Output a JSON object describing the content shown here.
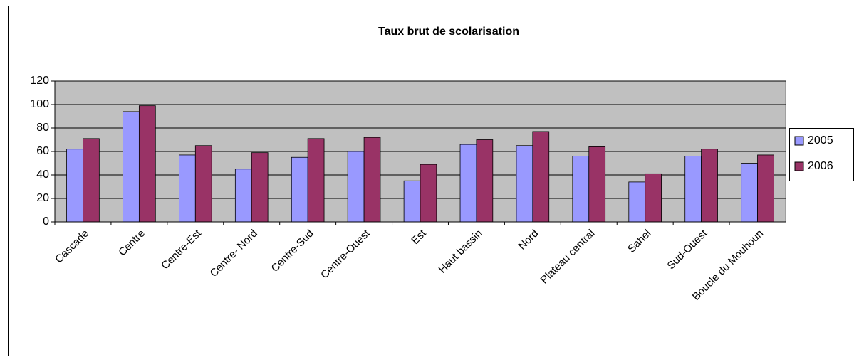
{
  "chart_data": {
    "type": "bar",
    "title": "Taux brut de scolarisation",
    "categories": [
      "Cascade",
      "Centre",
      "Centre-Est",
      "Centre- Nord",
      "Centre-Sud",
      "Centre-Ouest",
      "Est",
      "Haut bassin",
      "Nord",
      "Plateau central",
      "Sahel",
      "Sud-Ouest",
      "Boucle du Mouhoun"
    ],
    "series": [
      {
        "name": "2005",
        "color": "#9999ff",
        "values": [
          62,
          94,
          57,
          45,
          55,
          60,
          35,
          66,
          65,
          56,
          34,
          56,
          50
        ]
      },
      {
        "name": "2006",
        "color": "#993366",
        "values": [
          71,
          99,
          65,
          59,
          71,
          72,
          49,
          70,
          77,
          64,
          41,
          62,
          57
        ]
      }
    ],
    "ylim": [
      0,
      120
    ],
    "yticks": [
      0,
      20,
      40,
      60,
      80,
      100,
      120
    ],
    "grid": true,
    "legend": "right"
  }
}
